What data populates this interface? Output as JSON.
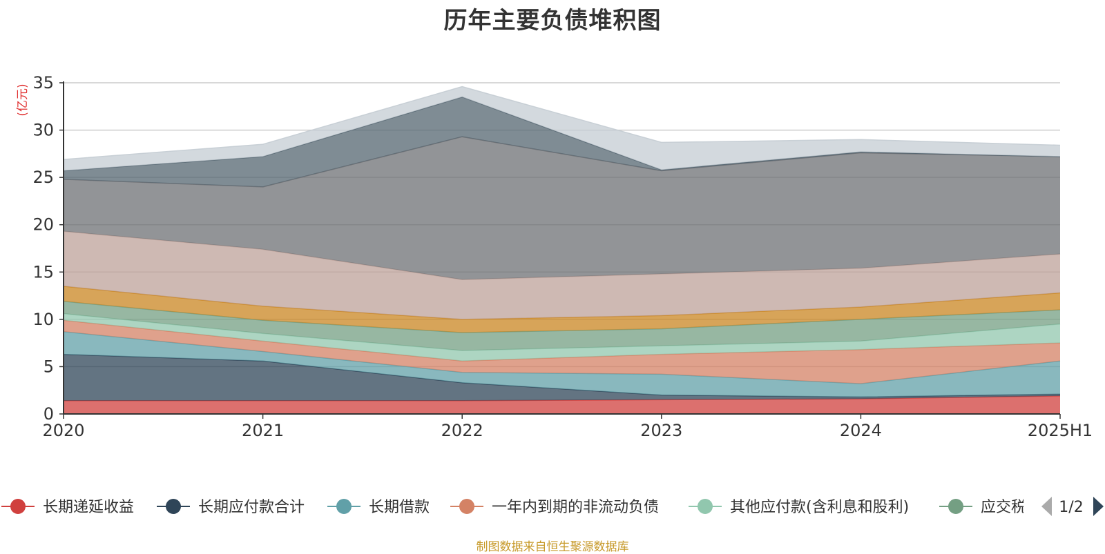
{
  "title": "历年主要负债堆积图",
  "source_note": "制图数据来自恒生聚源数据库",
  "legend_page": "1/2",
  "chart_data": {
    "type": "area",
    "stacked": true,
    "title": "历年主要负债堆积图",
    "ylabel": "(亿元)",
    "xlabel": "",
    "ylim": [
      0,
      35
    ],
    "yticks": [
      0,
      5,
      10,
      15,
      20,
      25,
      30,
      35
    ],
    "grid": true,
    "legend_position": "bottom",
    "categories": [
      "2020",
      "2021",
      "2022",
      "2023",
      "2024",
      "2025H1"
    ],
    "series": [
      {
        "name": "长期递延收益",
        "color": "#d0403e",
        "values": [
          1.4,
          1.4,
          1.4,
          1.5,
          1.6,
          1.9
        ]
      },
      {
        "name": "长期应付款合计",
        "color": "#2f4558",
        "values": [
          4.9,
          4.2,
          1.9,
          0.5,
          0.2,
          0.2
        ]
      },
      {
        "name": "长期借款",
        "color": "#61a0a8",
        "values": [
          2.4,
          1.0,
          1.1,
          2.2,
          1.4,
          3.5
        ]
      },
      {
        "name": "一年内到期的非流动负债",
        "color": "#d48265",
        "values": [
          1.2,
          1.1,
          1.2,
          2.1,
          3.6,
          1.9
        ]
      },
      {
        "name": "其他应付款(含利息和股利)",
        "color": "#91c7ae",
        "values": [
          0.7,
          0.8,
          1.1,
          0.9,
          0.9,
          2.0
        ]
      },
      {
        "name": "应交税费",
        "color": "#749f83",
        "values": [
          1.3,
          1.4,
          1.9,
          1.8,
          2.3,
          1.5
        ]
      },
      {
        "name": "",
        "color": "#ca8622",
        "values": [
          1.6,
          1.5,
          1.4,
          1.4,
          1.3,
          1.8
        ]
      },
      {
        "name": "",
        "color": "#bda29a",
        "values": [
          5.8,
          6.0,
          4.2,
          4.4,
          4.1,
          4.1
        ]
      },
      {
        "name": "",
        "color": "#6e7074",
        "values": [
          5.5,
          6.6,
          15.1,
          10.9,
          12.2,
          10.3
        ]
      },
      {
        "name": "",
        "color": "#546570",
        "values": [
          0.9,
          3.2,
          4.2,
          0.1,
          0.1,
          0.0
        ]
      },
      {
        "name": "",
        "color": "#c4ccd3",
        "values": [
          1.2,
          1.3,
          1.1,
          2.9,
          1.3,
          1.2
        ]
      }
    ]
  }
}
